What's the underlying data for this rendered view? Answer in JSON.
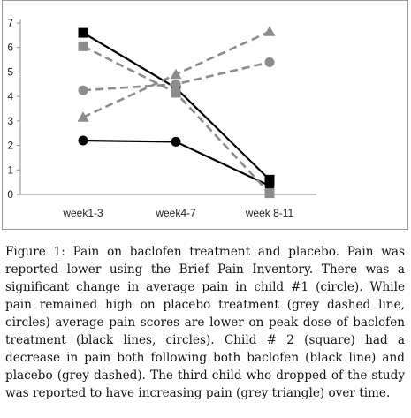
{
  "chart_data": {
    "type": "line",
    "categories": [
      "week1-3",
      "week4-7",
      "week 8-11"
    ],
    "ylim": [
      0,
      7
    ],
    "yticks": [
      0,
      1,
      2,
      3,
      4,
      5,
      6,
      7
    ],
    "grid": false,
    "legend": "none",
    "series": [
      {
        "values": [
          2.2,
          2.15,
          0.35
        ],
        "style": "solid",
        "color": "#000000",
        "marker": "circle"
      },
      {
        "values": [
          6.6,
          4.35,
          0.6
        ],
        "style": "solid",
        "color": "#000000",
        "marker": "square"
      },
      {
        "values": [
          4.25,
          4.5,
          5.4
        ],
        "style": "dashed",
        "color": "#8c8c8c",
        "marker": "circle"
      },
      {
        "values": [
          6.05,
          4.15,
          0.05
        ],
        "style": "dashed",
        "color": "#8c8c8c",
        "marker": "square"
      },
      {
        "values": [
          3.15,
          4.9,
          6.65
        ],
        "style": "dashed",
        "color": "#8c8c8c",
        "marker": "triangle"
      }
    ]
  },
  "caption": {
    "label": "Figure 1:",
    "text": " Pain on baclofen treatment and placebo. Pain was reported lower using the Brief Pain Inventory. There was a significant change in average pain in child #1 (circle). While pain remained high on placebo treatment (grey dashed line, circles) average pain scores are lower on peak dose of baclofen treatment (black lines, circles). Child # 2 (square) had a decrease in pain both following both baclofen (black line) and placebo (grey dashed). The third child who dropped of the study was reported to have increasing pain (grey triangle) over time."
  }
}
